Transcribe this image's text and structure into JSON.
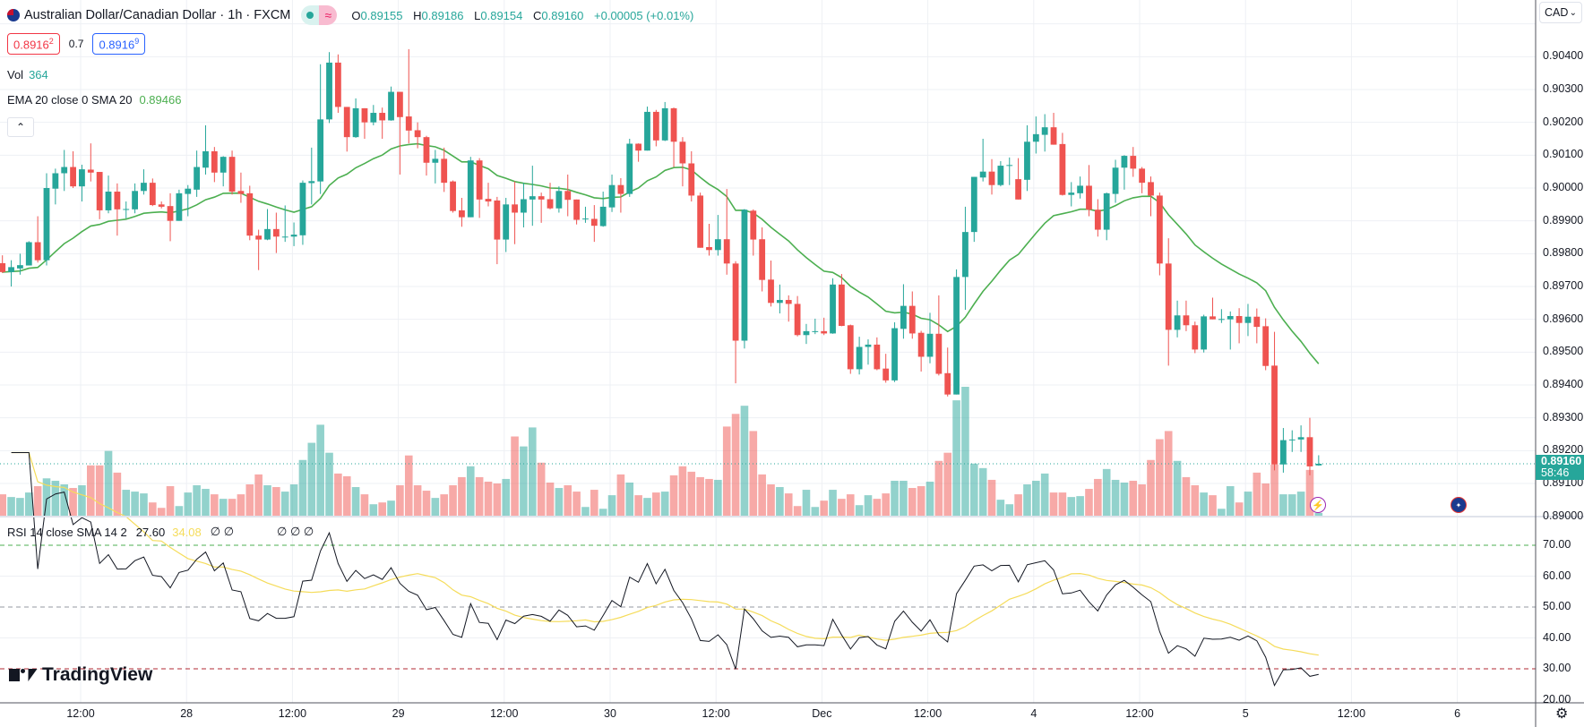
{
  "header": {
    "symbol_title": "Australian Dollar/Canadian Dollar · 1h · FXCM",
    "pill_symbol": "≈",
    "ohlc": {
      "o_label": "O",
      "o": "0.89155",
      "h_label": "H",
      "h": "0.89186",
      "l_label": "L",
      "l": "0.89154",
      "c_label": "C",
      "c": "0.89160",
      "change": "+0.00005 (+0.01%)"
    }
  },
  "trade": {
    "sell": "0.8916",
    "sell_sup": "2",
    "spread": "0.7",
    "buy": "0.8916",
    "buy_sup": "9"
  },
  "legend": {
    "vol_label": "Vol",
    "vol_value": "364",
    "ema_label": "EMA 20 close 0 SMA 20",
    "ema_value": "0.89466",
    "collapse_glyph": "⌃"
  },
  "rsi_legend": {
    "label": "RSI 14 close SMA 14 2",
    "rsi_value": "27.60",
    "sma_value": "34.08",
    "na1": "∅ ∅",
    "na2": "∅ ∅ ∅"
  },
  "currency_menu": {
    "label": "CAD",
    "chevron": "⌄"
  },
  "price_axis": {
    "labels": [
      "0.90400",
      "0.90300",
      "0.90200",
      "0.90100",
      "0.90000",
      "0.89900",
      "0.89800",
      "0.89700",
      "0.89600",
      "0.89500",
      "0.89400",
      "0.89300",
      "0.89200",
      "0.89100",
      "0.89000"
    ]
  },
  "last_price": {
    "value": "0.89160",
    "countdown": "58:46"
  },
  "rsi_axis": {
    "labels": [
      "70.00",
      "60.00",
      "50.00",
      "40.00",
      "30.00",
      "20.00"
    ]
  },
  "time_axis": {
    "labels": [
      "12:00",
      "28",
      "12:00",
      "29",
      "12:00",
      "30",
      "12:00",
      "Dec",
      "12:00",
      "4",
      "12:00",
      "5",
      "12:00",
      "6"
    ]
  },
  "branding": {
    "logo_text": "TradingView"
  },
  "settings": {
    "glyph": "⚙"
  },
  "events": {
    "lightning_glyph": "⚡",
    "flag_glyph": "✦"
  },
  "colors": {
    "up": "#26a69a",
    "down": "#ef5350",
    "ema": "#4caf50",
    "rsi": "#131722",
    "rsi_sma": "#f5dc5a",
    "band_upper": "#4caf50",
    "band_mid": "#9598a1",
    "band_lower": "#b22833"
  },
  "chart_data": {
    "type": "candlestick",
    "title": "Australian Dollar/Canadian Dollar · 1h · FXCM",
    "interval": "1h",
    "ylim": [
      0.89,
      0.905
    ],
    "rsi_ylim": [
      20,
      75
    ],
    "rsi_levels": [
      70,
      50,
      30
    ],
    "rsi_period": 14,
    "ema_period": 20,
    "last": {
      "ema20": 0.89466,
      "rsi": 27.6,
      "rsi_sma": 34.08,
      "volume": 364
    },
    "open": [
      0.89771,
      0.89744,
      0.89755,
      0.89764,
      0.89835,
      0.8978,
      0.89998,
      0.90045,
      0.90064,
      0.90005,
      0.90056,
      0.90049,
      0.89932,
      0.89989,
      0.89935,
      0.89935,
      0.89991,
      0.90016,
      0.8995,
      0.89945,
      0.899,
      0.89982,
      0.89995,
      0.90062,
      0.90112,
      0.90047,
      0.90095,
      0.89991,
      0.89984,
      0.89855,
      0.89843,
      0.89875,
      0.89852,
      0.89852,
      0.89856,
      0.90015,
      0.9002,
      0.90209,
      0.90382,
      0.90247,
      0.90155,
      0.90243,
      0.902,
      0.90229,
      0.90206,
      0.90293,
      0.90218,
      0.90176,
      0.90155,
      0.90077,
      0.90089,
      0.9002,
      0.89932,
      0.89911,
      0.90084,
      0.89967,
      0.89962,
      0.89843,
      0.8995,
      0.89925,
      0.89965,
      0.89975,
      0.89966,
      0.89938,
      0.89991,
      0.89965,
      0.89905,
      0.89906,
      0.89884,
      0.89941,
      0.90009,
      0.89982,
      0.90135,
      0.90114,
      0.90232,
      0.90145,
      0.90243,
      0.90141,
      0.90075,
      0.89977,
      0.8982,
      0.89811,
      0.89844,
      0.8977,
      0.89535,
      0.89931,
      0.89844,
      0.89721,
      0.8965,
      0.89659,
      0.89647,
      0.89552,
      0.89563,
      0.89564,
      0.89557,
      0.89706,
      0.89582,
      0.89448,
      0.89516,
      0.89523,
      0.8945,
      0.89414,
      0.89571,
      0.89641,
      0.89559,
      0.89486,
      0.89556,
      0.89436,
      0.89371,
      0.89729,
      0.89866,
      0.90032,
      0.9005,
      0.90009,
      0.90069,
      0.90027,
      0.90025,
      0.90141,
      0.90162,
      0.90185,
      0.90134,
      0.89979,
      0.89984,
      0.90007,
      0.89934,
      0.89873,
      0.89982,
      0.90062,
      0.90098,
      0.90059,
      0.90018,
      0.89977,
      0.8977,
      0.89568,
      0.89612,
      0.89582,
      0.89508,
      0.89609,
      0.89601,
      0.896,
      0.8961,
      0.89589,
      0.89608,
      0.89579,
      0.89459,
      0.89158,
      0.89232,
      0.89234,
      0.89241,
      0.89155
    ],
    "high": [
      0.89795,
      0.8978,
      0.898,
      0.89838,
      0.89914,
      0.90045,
      0.90059,
      0.90116,
      0.90112,
      0.90071,
      0.90136,
      0.90049,
      0.90038,
      0.90014,
      0.89959,
      0.90014,
      0.90057,
      0.90029,
      0.89959,
      0.89984,
      0.89995,
      0.90009,
      0.90114,
      0.90191,
      0.90125,
      0.90097,
      0.90114,
      0.90047,
      0.90007,
      0.89873,
      0.89936,
      0.89925,
      0.89947,
      0.89895,
      0.90023,
      0.90123,
      0.90377,
      0.90414,
      0.90407,
      0.90247,
      0.90273,
      0.90243,
      0.90253,
      0.90245,
      0.90309,
      0.90293,
      0.90423,
      0.902,
      0.90159,
      0.90116,
      0.90123,
      0.90023,
      0.8997,
      0.90095,
      0.90091,
      0.90016,
      0.89973,
      0.8997,
      0.9002,
      0.90016,
      0.90068,
      0.89986,
      0.90016,
      0.90005,
      0.90041,
      0.89965,
      0.89943,
      0.89948,
      0.89989,
      0.90041,
      0.9003,
      0.9015,
      0.90136,
      0.90248,
      0.90238,
      0.90262,
      0.90245,
      0.90155,
      0.90112,
      0.89986,
      0.89891,
      0.89918,
      0.89997,
      0.89777,
      0.89936,
      0.89935,
      0.8988,
      0.89779,
      0.89706,
      0.89673,
      0.89671,
      0.89586,
      0.89602,
      0.89605,
      0.89725,
      0.89738,
      0.89584,
      0.89547,
      0.89539,
      0.89545,
      0.89495,
      0.89591,
      0.89707,
      0.89685,
      0.89565,
      0.8962,
      0.89673,
      0.89514,
      0.89752,
      0.89943,
      0.90034,
      0.9015,
      0.90088,
      0.90082,
      0.90093,
      0.90091,
      0.90191,
      0.90218,
      0.90225,
      0.90229,
      0.90168,
      0.90018,
      0.90035,
      0.9007,
      0.89966,
      0.89986,
      0.90086,
      0.901,
      0.90125,
      0.90064,
      0.90035,
      0.89986,
      0.89847,
      0.89657,
      0.89657,
      0.89593,
      0.89614,
      0.89666,
      0.89631,
      0.89624,
      0.89634,
      0.89647,
      0.89633,
      0.89603,
      0.89562,
      0.89269,
      0.89262,
      0.89277,
      0.893,
      0.89186
    ],
    "low": [
      0.89741,
      0.897,
      0.89736,
      0.89764,
      0.89773,
      0.89764,
      0.8995,
      0.89991,
      0.9,
      0.89959,
      0.9002,
      0.89905,
      0.89923,
      0.89855,
      0.89907,
      0.89923,
      0.8998,
      0.89945,
      0.89938,
      0.89838,
      0.899,
      0.89914,
      0.89973,
      0.90041,
      0.90018,
      0.90005,
      0.8998,
      0.89955,
      0.89841,
      0.8975,
      0.89841,
      0.89802,
      0.89836,
      0.89823,
      0.89827,
      0.8995,
      0.89982,
      0.90198,
      0.90229,
      0.90111,
      0.90153,
      0.9015,
      0.90191,
      0.9015,
      0.90205,
      0.90041,
      0.90136,
      0.90121,
      0.90038,
      0.90014,
      0.89988,
      0.89925,
      0.89882,
      0.89911,
      0.89909,
      0.89944,
      0.89768,
      0.89805,
      0.89829,
      0.8988,
      0.89885,
      0.89894,
      0.89935,
      0.89925,
      0.89914,
      0.89889,
      0.89894,
      0.89836,
      0.89882,
      0.89927,
      0.89925,
      0.89973,
      0.9008,
      0.90114,
      0.90127,
      0.90143,
      0.90064,
      0.90005,
      0.89959,
      0.89818,
      0.89794,
      0.89794,
      0.89736,
      0.89405,
      0.89511,
      0.89794,
      0.89685,
      0.89639,
      0.89618,
      0.89593,
      0.89548,
      0.89525,
      0.89555,
      0.89552,
      0.89556,
      0.89579,
      0.89434,
      0.89432,
      0.89462,
      0.89445,
      0.89407,
      0.89409,
      0.89541,
      0.89541,
      0.89441,
      0.89466,
      0.89429,
      0.89365,
      0.89371,
      0.89629,
      0.89836,
      0.9002,
      0.8998,
      0.90005,
      0.90009,
      0.89965,
      0.89991,
      0.90105,
      0.90111,
      0.90132,
      0.89977,
      0.89944,
      0.89968,
      0.89914,
      0.89852,
      0.89841,
      0.89955,
      0.89995,
      0.90034,
      0.89984,
      0.89914,
      0.89734,
      0.89459,
      0.89545,
      0.89564,
      0.89497,
      0.89499,
      0.896,
      0.89589,
      0.89508,
      0.89527,
      0.89549,
      0.89527,
      0.89445,
      0.8914,
      0.89133,
      0.89196,
      0.89196,
      0.89125,
      0.89154
    ],
    "close": [
      0.89744,
      0.89759,
      0.89765,
      0.89835,
      0.8978,
      0.9,
      0.90045,
      0.90064,
      0.90005,
      0.90057,
      0.90047,
      0.89932,
      0.89989,
      0.89935,
      0.89936,
      0.89991,
      0.90016,
      0.89948,
      0.89943,
      0.899,
      0.89984,
      0.89998,
      0.90064,
      0.90112,
      0.90047,
      0.90095,
      0.89989,
      0.89982,
      0.89855,
      0.89843,
      0.89875,
      0.89852,
      0.89852,
      0.89858,
      0.90016,
      0.90021,
      0.90209,
      0.90382,
      0.90247,
      0.90155,
      0.90243,
      0.902,
      0.90229,
      0.90206,
      0.90293,
      0.90216,
      0.90175,
      0.90155,
      0.90077,
      0.90089,
      0.90016,
      0.8993,
      0.89911,
      0.90084,
      0.89965,
      0.89959,
      0.89843,
      0.8995,
      0.89925,
      0.89966,
      0.89975,
      0.89965,
      0.89938,
      0.89991,
      0.89964,
      0.89903,
      0.89907,
      0.89885,
      0.89943,
      0.90009,
      0.89982,
      0.90135,
      0.90114,
      0.90232,
      0.90145,
      0.90243,
      0.90141,
      0.90075,
      0.89977,
      0.89818,
      0.89811,
      0.89844,
      0.8977,
      0.89535,
      0.89934,
      0.89843,
      0.8972,
      0.8965,
      0.89659,
      0.89647,
      0.89552,
      0.89564,
      0.89564,
      0.89557,
      0.89706,
      0.8958,
      0.89448,
      0.89516,
      0.89523,
      0.89448,
      0.89414,
      0.89573,
      0.89641,
      0.89557,
      0.89486,
      0.89556,
      0.89434,
      0.89371,
      0.89729,
      0.89866,
      0.90034,
      0.9005,
      0.90009,
      0.90068,
      0.9007,
      0.89965,
      0.90141,
      0.90164,
      0.90185,
      0.90132,
      0.89979,
      0.89986,
      0.90007,
      0.89934,
      0.89873,
      0.89984,
      0.90062,
      0.90098,
      0.90059,
      0.90016,
      0.89977,
      0.8977,
      0.89568,
      0.89612,
      0.89582,
      0.89508,
      0.89609,
      0.896,
      0.89601,
      0.8961,
      0.89589,
      0.89608,
      0.89577,
      0.89458,
      0.89158,
      0.89232,
      0.89234,
      0.89241,
      0.89152,
      0.8916
    ],
    "volume": [
      2220,
      1950,
      1860,
      2400,
      3030,
      3810,
      3570,
      3210,
      2850,
      3120,
      5100,
      5100,
      6540,
      4380,
      2670,
      2490,
      2310,
      1410,
      870,
      3030,
      1050,
      2400,
      3120,
      2760,
      2220,
      1770,
      1770,
      2220,
      3210,
      4200,
      3120,
      2940,
      2490,
      3210,
      5640,
      7350,
      9150,
      6360,
      4290,
      4020,
      2940,
      2220,
      1230,
      1410,
      1590,
      3120,
      6090,
      3120,
      2580,
      1860,
      2220,
      3120,
      3930,
      5010,
      3930,
      3480,
      3300,
      3750,
      7980,
      6990,
      8880,
      5370,
      3390,
      2850,
      3120,
      2490,
      960,
      2670,
      780,
      2130,
      4200,
      3390,
      2130,
      1860,
      2400,
      2490,
      4110,
      5010,
      4470,
      3930,
      3750,
      3660,
      8970,
      10230,
      11040,
      8520,
      4200,
      3210,
      2940,
      2310,
      1050,
      2670,
      960,
      1590,
      2670,
      1770,
      2220,
      1140,
      2130,
      1770,
      2310,
      3570,
      3570,
      2850,
      3030,
      3480,
      5550,
      6360,
      11580,
      12930,
      5280,
      4830,
      3660,
      1680,
      1230,
      2220,
      3210,
      3570,
      4290,
      2400,
      2400,
      1950,
      2040,
      2760,
      3750,
      4740,
      3660,
      3390,
      3570,
      3210,
      5640,
      7710,
      8520,
      5550,
      3930,
      3120,
      2400,
      2130,
      780,
      3030,
      1410,
      2490,
      4380,
      3300,
      5190,
      2220,
      2220,
      2490,
      4650,
      364
    ]
  }
}
